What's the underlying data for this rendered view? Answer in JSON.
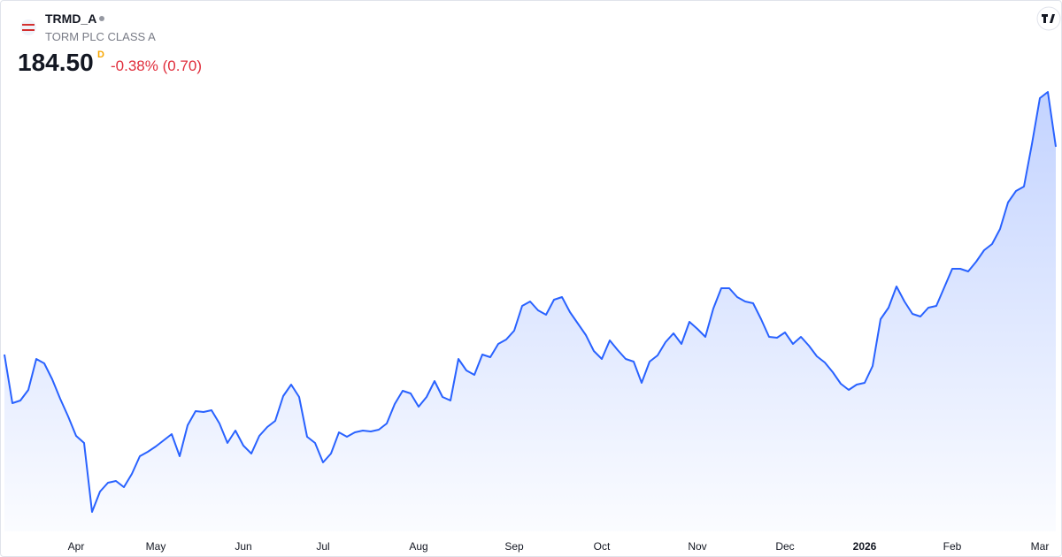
{
  "header": {
    "symbol": "TRMD_A",
    "name": "TORM PLC CLASS A",
    "price": "184.50",
    "flag": "D",
    "change": "-0.38% (0.70)"
  },
  "chart_data": {
    "type": "area",
    "color": "#2962ff",
    "ylim": [
      91.5,
      217.5
    ],
    "categories": [
      null,
      null,
      null,
      null,
      null,
      null,
      null,
      null,
      null,
      "Apr",
      null,
      null,
      null,
      null,
      null,
      null,
      null,
      null,
      null,
      "May",
      null,
      null,
      null,
      null,
      null,
      null,
      null,
      null,
      null,
      null,
      "Jun",
      null,
      null,
      null,
      null,
      null,
      null,
      null,
      null,
      null,
      "Jul",
      null,
      null,
      null,
      null,
      null,
      null,
      null,
      null,
      null,
      null,
      null,
      "Aug",
      null,
      null,
      null,
      null,
      null,
      null,
      null,
      null,
      null,
      null,
      null,
      "Sep",
      null,
      null,
      null,
      null,
      null,
      null,
      null,
      null,
      null,
      null,
      "Oct",
      null,
      null,
      null,
      null,
      null,
      null,
      null,
      null,
      null,
      null,
      null,
      "Nov",
      null,
      null,
      null,
      null,
      null,
      null,
      null,
      null,
      null,
      null,
      "Dec",
      null,
      null,
      null,
      null,
      null,
      null,
      null,
      null,
      null,
      "2026",
      null,
      null,
      null,
      null,
      null,
      null,
      null,
      null,
      null,
      null,
      "Feb",
      null,
      null,
      null,
      null,
      null,
      null,
      null,
      null,
      null,
      null,
      "Mar",
      null,
      null
    ],
    "values": [
      137.5,
      126.5,
      127.1,
      129.5,
      136.5,
      135.5,
      131.9,
      127.5,
      123.5,
      119.1,
      117.5,
      101.9,
      106.5,
      108.5,
      108.9,
      107.5,
      110.5,
      114.5,
      115.5,
      116.7,
      118.1,
      119.5,
      114.5,
      121.5,
      124.7,
      124.5,
      124.9,
      121.9,
      117.5,
      120.3,
      116.9,
      115.1,
      119.1,
      121.1,
      122.5,
      128.1,
      130.7,
      127.9,
      118.9,
      117.5,
      113.1,
      115.1,
      119.9,
      118.9,
      119.9,
      120.3,
      120.1,
      120.5,
      121.9,
      126.3,
      129.3,
      128.7,
      125.7,
      127.9,
      131.5,
      127.9,
      127.1,
      136.5,
      133.9,
      132.9,
      137.5,
      136.9,
      139.9,
      140.9,
      142.9,
      148.5,
      149.5,
      147.5,
      146.5,
      149.9,
      150.5,
      147.1,
      144.5,
      141.9,
      138.3,
      136.5,
      140.7,
      138.5,
      136.5,
      135.9,
      131.1,
      135.9,
      137.3,
      140.3,
      142.3,
      139.9,
      144.9,
      143.3,
      141.5,
      147.9,
      152.5,
      152.5,
      150.5,
      149.5,
      149.1,
      145.5,
      141.5,
      141.3,
      142.5,
      139.9,
      141.5,
      139.5,
      137.1,
      135.7,
      133.5,
      130.9,
      129.5,
      130.7,
      131.1,
      134.9,
      145.5,
      148.1,
      152.9,
      149.5,
      146.7,
      146.1,
      148.1,
      148.5,
      152.7,
      156.9,
      156.9,
      156.3,
      158.5,
      161.1,
      162.5,
      165.9,
      171.9,
      174.5,
      175.5,
      185.1,
      195.5,
      196.9,
      184.5
    ]
  }
}
